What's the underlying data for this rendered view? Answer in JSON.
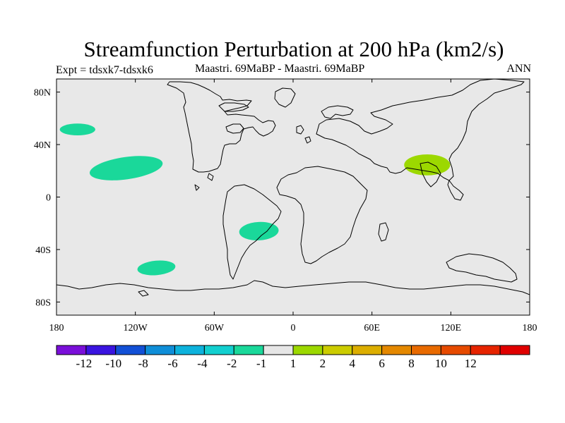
{
  "map": {
    "title": "Streamfunction Perturbation at 200 hPa (km2/s)",
    "left_label": "Expt = tdsxk7-tdsxk6",
    "center_label": "Maastri.  69MaBP - Maastri.  69MaBP",
    "right_label": "ANN",
    "background_color": "#e8e8e8",
    "coastline_color": "#000000",
    "lon_ticks": [
      {
        "lon": -180,
        "label": "180"
      },
      {
        "lon": -120,
        "label": "120W"
      },
      {
        "lon": -60,
        "label": "60W"
      },
      {
        "lon": 0,
        "label": "0"
      },
      {
        "lon": 60,
        "label": "60E"
      },
      {
        "lon": 120,
        "label": "120E"
      },
      {
        "lon": 180,
        "label": "180"
      }
    ],
    "lat_ticks": [
      {
        "lat": 80,
        "label": "80N"
      },
      {
        "lat": 40,
        "label": "40N"
      },
      {
        "lat": 0,
        "label": "0"
      },
      {
        "lat": -40,
        "label": "40S"
      },
      {
        "lat": -80,
        "label": "80S"
      }
    ],
    "features": [
      {
        "name": "anomaly-northpacific",
        "lon": -164,
        "lat": 51.5,
        "rlon": 13.5,
        "rlat": 4.5,
        "rot": 0,
        "color": "#1ad89a"
      },
      {
        "name": "anomaly-eastpacific-tropics",
        "lon": -127,
        "lat": 22,
        "rlon": 28,
        "rlat": 8.5,
        "rot": -8,
        "color": "#1ad89a"
      },
      {
        "name": "anomaly-southpacific",
        "lon": -104,
        "lat": -54,
        "rlon": 14.5,
        "rlat": 5.5,
        "rot": -5,
        "color": "#1ad89a"
      },
      {
        "name": "anomaly-southatlantic",
        "lon": -26,
        "lat": -26,
        "rlon": 15,
        "rlat": 7,
        "rot": -3,
        "color": "#1ad89a"
      },
      {
        "name": "anomaly-southasia",
        "lon": 102,
        "lat": 24.5,
        "rlon": 17.5,
        "rlat": 8,
        "rot": 0,
        "color": "#9cd800"
      }
    ]
  },
  "colorbar": {
    "colors": [
      "#7a0fd9",
      "#3a14e0",
      "#1250d6",
      "#0f8ed8",
      "#0db2dc",
      "#12cfcf",
      "#1ad89a",
      "#e6e6e6",
      "#9cd800",
      "#cccc00",
      "#dcae00",
      "#e48800",
      "#e86a00",
      "#e64a00",
      "#e62400",
      "#e00000"
    ],
    "labels": [
      "-12",
      "-10",
      "-8",
      "-6",
      "-4",
      "-2",
      "-1",
      "1",
      "2",
      "4",
      "6",
      "8",
      "10",
      "12"
    ]
  }
}
